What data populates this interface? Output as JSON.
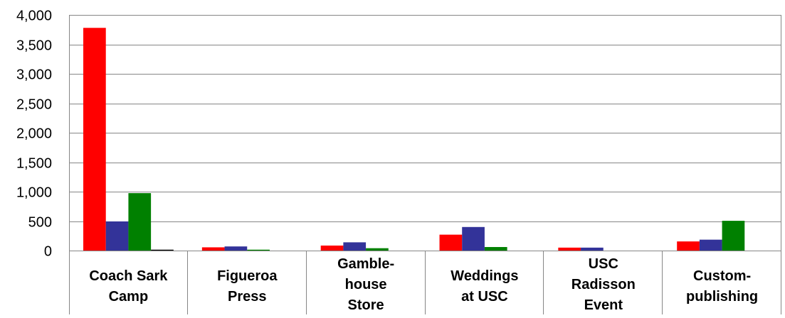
{
  "chart_data": {
    "type": "bar",
    "categories": [
      [
        "Coach Sark",
        "Camp"
      ],
      [
        "Figueroa",
        "Press"
      ],
      [
        "Gamble-",
        "house",
        "Store"
      ],
      [
        "Weddings",
        "at USC"
      ],
      [
        "USC",
        "Radisson",
        "Event"
      ],
      [
        "Custom-",
        "publishing"
      ]
    ],
    "series": [
      {
        "color": "#ff0000",
        "values": [
          3780,
          55,
          85,
          270,
          50,
          155
        ]
      },
      {
        "color": "#333399",
        "values": [
          495,
          70,
          140,
          400,
          50,
          185
        ]
      },
      {
        "color": "#008000",
        "values": [
          975,
          15,
          40,
          60,
          0,
          505
        ]
      },
      {
        "color": "#000000",
        "values": [
          15,
          0,
          0,
          0,
          0,
          0
        ]
      }
    ],
    "yticks": [
      "0",
      "500",
      "1,000",
      "1,500",
      "2,000",
      "2,500",
      "3,000",
      "3,500",
      "4,000"
    ],
    "ylim": [
      0,
      4000
    ],
    "grid": true,
    "title": "",
    "xlabel": "",
    "ylabel": ""
  }
}
